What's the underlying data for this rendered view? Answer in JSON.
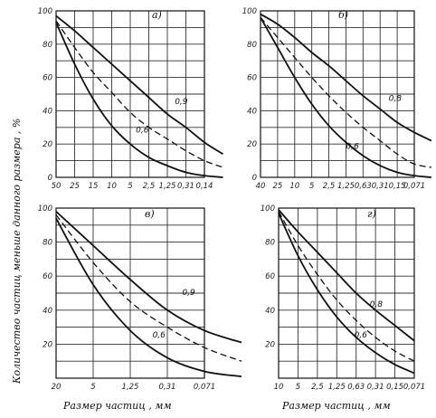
{
  "chart_data": [
    {
      "type": "line",
      "panel_label": "a)",
      "x_ticks": [
        "50",
        "25",
        "15",
        "10",
        "5",
        "2,5",
        "1,25",
        "0,31",
        "0,14"
      ],
      "y_ticks": [
        "100",
        "80",
        "60",
        "40",
        "20",
        "0"
      ],
      "ylim": [
        0,
        100
      ],
      "grid": true,
      "series": [
        {
          "name": "0,9",
          "style": "solid",
          "values": [
            [
              0,
              97
            ],
            [
              1,
              88
            ],
            [
              2,
              78
            ],
            [
              3,
              68
            ],
            [
              4,
              58
            ],
            [
              5,
              48
            ],
            [
              6,
              38
            ],
            [
              7,
              30
            ],
            [
              8,
              21
            ],
            [
              9,
              14
            ]
          ]
        },
        {
          "name": "",
          "style": "dashed",
          "values": [
            [
              0,
              94
            ],
            [
              1,
              78
            ],
            [
              2,
              63
            ],
            [
              3,
              51
            ],
            [
              4,
              39
            ],
            [
              5,
              30
            ],
            [
              6,
              23
            ],
            [
              7,
              16
            ],
            [
              8,
              10
            ],
            [
              9,
              6
            ]
          ]
        },
        {
          "name": "0,6",
          "style": "solid",
          "values": [
            [
              0,
              93
            ],
            [
              1,
              68
            ],
            [
              2,
              47
            ],
            [
              3,
              31
            ],
            [
              4,
              20
            ],
            [
              5,
              12
            ],
            [
              6,
              7
            ],
            [
              7,
              3
            ],
            [
              8,
              1
            ],
            [
              9,
              0
            ]
          ]
        }
      ],
      "curve_labels": [
        {
          "text": "0,9",
          "x": 6.4,
          "y": 44
        },
        {
          "text": "0,6",
          "x": 4.3,
          "y": 27
        }
      ]
    },
    {
      "type": "line",
      "panel_label": "б)",
      "x_ticks": [
        "40",
        "25",
        "10",
        "5",
        "2,5",
        "1,25",
        "0,63",
        "0,31",
        "0,15",
        "0,071"
      ],
      "y_ticks": [
        "100",
        "80",
        "60",
        "40",
        "20",
        "0"
      ],
      "ylim": [
        0,
        100
      ],
      "grid": true,
      "series": [
        {
          "name": "0,8",
          "style": "solid",
          "values": [
            [
              0,
              98
            ],
            [
              1,
              92
            ],
            [
              2,
              84
            ],
            [
              3,
              75
            ],
            [
              4,
              67
            ],
            [
              5,
              58
            ],
            [
              6,
              49
            ],
            [
              7,
              41
            ],
            [
              8,
              33
            ],
            [
              9,
              27
            ],
            [
              10,
              22
            ]
          ]
        },
        {
          "name": "",
          "style": "dashed",
          "values": [
            [
              0,
              96
            ],
            [
              1,
              84
            ],
            [
              2,
              72
            ],
            [
              3,
              60
            ],
            [
              4,
              49
            ],
            [
              5,
              39
            ],
            [
              6,
              30
            ],
            [
              7,
              22
            ],
            [
              8,
              14
            ],
            [
              9,
              8
            ],
            [
              10,
              6
            ]
          ]
        },
        {
          "name": "0,6",
          "style": "solid",
          "values": [
            [
              0,
              96
            ],
            [
              1,
              78
            ],
            [
              2,
              60
            ],
            [
              3,
              44
            ],
            [
              4,
              31
            ],
            [
              5,
              21
            ],
            [
              6,
              13
            ],
            [
              7,
              7
            ],
            [
              8,
              3
            ],
            [
              9,
              1
            ],
            [
              10,
              0
            ]
          ]
        }
      ],
      "curve_labels": [
        {
          "text": "0,8",
          "x": 7.5,
          "y": 46
        },
        {
          "text": "0,6",
          "x": 5.0,
          "y": 17
        }
      ]
    },
    {
      "type": "line",
      "panel_label": "в)",
      "x_ticks": [
        "20",
        "5",
        "1,25",
        "0,31",
        "0,071"
      ],
      "y_ticks": [
        "100",
        "80",
        "60",
        "40",
        "20"
      ],
      "ylim": [
        0,
        100
      ],
      "grid": true,
      "series": [
        {
          "name": "0,9",
          "style": "solid",
          "values": [
            [
              0,
              98
            ],
            [
              1,
              78
            ],
            [
              2,
              58
            ],
            [
              3,
              40
            ],
            [
              4,
              28
            ],
            [
              5,
              21
            ]
          ]
        },
        {
          "name": "",
          "style": "dashed",
          "values": [
            [
              0,
              96
            ],
            [
              1,
              68
            ],
            [
              2,
              45
            ],
            [
              3,
              30
            ],
            [
              4,
              18
            ],
            [
              5,
              10
            ]
          ]
        },
        {
          "name": "0,6",
          "style": "solid",
          "values": [
            [
              0,
              94
            ],
            [
              1,
              55
            ],
            [
              2,
              28
            ],
            [
              3,
              12
            ],
            [
              4,
              4
            ],
            [
              5,
              1
            ]
          ]
        }
      ],
      "curve_labels": [
        {
          "text": "0,9",
          "x": 3.4,
          "y": 49
        },
        {
          "text": "0,6",
          "x": 2.6,
          "y": 24
        }
      ]
    },
    {
      "type": "line",
      "panel_label": "г)",
      "x_ticks": [
        "10",
        "5",
        "2,5",
        "1,25",
        "0,63",
        "0,31",
        "0,15",
        "0,071"
      ],
      "y_ticks": [
        "100",
        "80",
        "60",
        "40",
        "20"
      ],
      "ylim": [
        0,
        100
      ],
      "grid": true,
      "series": [
        {
          "name": "0,8",
          "style": "solid",
          "values": [
            [
              0,
              99
            ],
            [
              1,
              86
            ],
            [
              2,
              74
            ],
            [
              3,
              62
            ],
            [
              4,
              50
            ],
            [
              5,
              40
            ],
            [
              6,
              31
            ],
            [
              7,
              22
            ]
          ]
        },
        {
          "name": "",
          "style": "dashed",
          "values": [
            [
              0,
              98
            ],
            [
              1,
              78
            ],
            [
              2,
              61
            ],
            [
              3,
              46
            ],
            [
              4,
              34
            ],
            [
              5,
              24
            ],
            [
              6,
              16
            ],
            [
              7,
              10
            ]
          ]
        },
        {
          "name": "0,6",
          "style": "solid",
          "values": [
            [
              0,
              97
            ],
            [
              1,
              72
            ],
            [
              2,
              52
            ],
            [
              3,
              36
            ],
            [
              4,
              24
            ],
            [
              5,
              15
            ],
            [
              6,
              8
            ],
            [
              7,
              3
            ]
          ]
        }
      ],
      "curve_labels": [
        {
          "text": "0,8",
          "x": 4.7,
          "y": 42
        },
        {
          "text": "0,6",
          "x": 3.9,
          "y": 24
        }
      ]
    }
  ],
  "y_axis_title": "Количество частиц меньше данного размера , %",
  "x_axis_titles": [
    "Размер частиц , мм",
    "Размер частиц , мм"
  ]
}
